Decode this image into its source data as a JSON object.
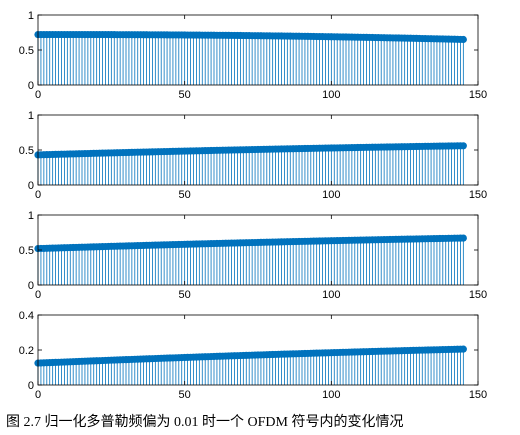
{
  "caption": "图 2.7 归一化多普勒频偏为 0.01 时一个 OFDM 符号内的变化情况",
  "colors": {
    "stem": "#0072BD",
    "axis": "#000000"
  },
  "chart_data": [
    {
      "type": "stem",
      "title": "",
      "xlabel": "",
      "ylabel": "",
      "xlim": [
        0,
        150
      ],
      "ylim": [
        0,
        1
      ],
      "xticks": [
        0,
        50,
        100,
        150
      ],
      "yticks": [
        0,
        0.5,
        1
      ],
      "ytick_labels": [
        "0",
        "0.5",
        "1"
      ],
      "xtick_labels": [
        "0",
        "50",
        "100",
        "150"
      ],
      "series": [
        {
          "x_start": 0,
          "x_end": 145,
          "y_start": 0.72,
          "y_mid": 0.705,
          "y_end": 0.65
        }
      ]
    },
    {
      "type": "stem",
      "title": "",
      "xlabel": "",
      "ylabel": "",
      "xlim": [
        0,
        150
      ],
      "ylim": [
        0,
        1
      ],
      "xticks": [
        0,
        50,
        100,
        150
      ],
      "yticks": [
        0,
        0.5,
        1
      ],
      "ytick_labels": [
        "0",
        "0.5",
        "1"
      ],
      "xtick_labels": [
        "0",
        "50",
        "100",
        "150"
      ],
      "series": [
        {
          "x_start": 0,
          "x_end": 145,
          "y_start": 0.43,
          "y_mid": 0.505,
          "y_end": 0.56
        }
      ]
    },
    {
      "type": "stem",
      "title": "",
      "xlabel": "",
      "ylabel": "",
      "xlim": [
        0,
        150
      ],
      "ylim": [
        0,
        1
      ],
      "xticks": [
        0,
        50,
        100,
        150
      ],
      "yticks": [
        0,
        0.5,
        1
      ],
      "ytick_labels": [
        "0",
        "0.5",
        "1"
      ],
      "xtick_labels": [
        "0",
        "50",
        "100",
        "150"
      ],
      "series": [
        {
          "x_start": 0,
          "x_end": 145,
          "y_start": 0.52,
          "y_mid": 0.605,
          "y_end": 0.67
        }
      ]
    },
    {
      "type": "stem",
      "title": "",
      "xlabel": "",
      "ylabel": "",
      "xlim": [
        0,
        150
      ],
      "ylim": [
        0,
        0.4
      ],
      "xticks": [
        0,
        50,
        100,
        150
      ],
      "yticks": [
        0,
        0.2,
        0.4
      ],
      "ytick_labels": [
        "0",
        "0.2",
        "0.4"
      ],
      "xtick_labels": [
        "0",
        "50",
        "100",
        "150"
      ],
      "series": [
        {
          "x_start": 0,
          "x_end": 145,
          "y_start": 0.125,
          "y_mid": 0.17,
          "y_end": 0.205
        }
      ]
    }
  ]
}
